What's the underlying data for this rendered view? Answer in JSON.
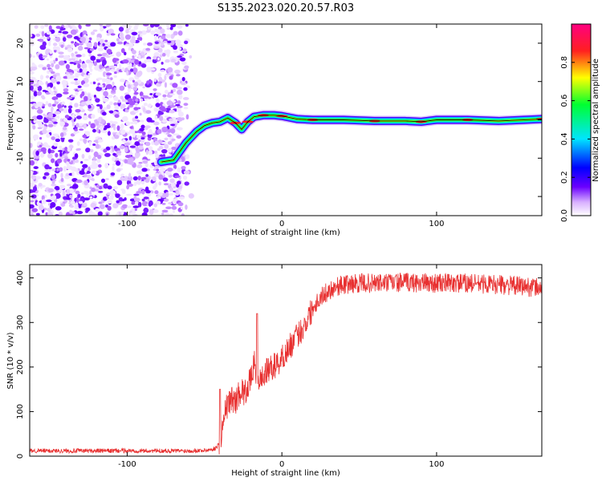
{
  "chart_data": [
    {
      "type": "heatmap",
      "title": "S135.2023.020.20.57.R03",
      "xlabel": "Height of straight line (km)",
      "ylabel": "Frequency (Hz)",
      "xlim": [
        -163,
        168
      ],
      "ylim": [
        -25,
        25
      ],
      "x_ticks": [
        -100,
        0,
        100
      ],
      "y_ticks": [
        -20,
        -10,
        0,
        10,
        20
      ],
      "colorbar": {
        "label": "Normalized spectral amplitude",
        "range": [
          0,
          1
        ],
        "ticks": [
          0.0,
          0.2,
          0.4,
          0.6,
          0.8
        ],
        "colors": [
          "#ffffff",
          "#6a00ff",
          "#0000ff",
          "#00e5ff",
          "#00ff30",
          "#ffff00",
          "#ff2020",
          "#ff0080"
        ]
      },
      "noise_region": {
        "x": [
          -163,
          -58
        ],
        "y": [
          -25,
          25
        ]
      },
      "ridge": {
        "x": [
          -78,
          -70,
          -62,
          -55,
          -50,
          -45,
          -40,
          -35,
          -30,
          -26,
          -22,
          -18,
          -12,
          -5,
          0,
          10,
          20,
          40,
          60,
          80,
          90,
          100,
          120,
          140,
          168
        ],
        "y": [
          -11,
          -10.5,
          -6,
          -3,
          -1.5,
          -0.8,
          -0.5,
          0.5,
          -0.8,
          -2.5,
          -0.5,
          0.8,
          1.2,
          1.2,
          1,
          0.2,
          0,
          0,
          -0.3,
          -0.3,
          -0.5,
          0,
          0,
          -0.3,
          0.2
        ]
      }
    },
    {
      "type": "line",
      "xlabel": "Height of straight line (km)",
      "ylabel": "SNR (10 * v/v)",
      "xlim": [
        -163,
        168
      ],
      "ylim": [
        0,
        430
      ],
      "x_ticks": [
        -100,
        0,
        100
      ],
      "y_ticks": [
        0,
        100,
        200,
        300,
        400
      ],
      "color": "#e83030",
      "series": [
        {
          "x": [
            -163,
            -140,
            -120,
            -100,
            -80,
            -60,
            -50,
            -45,
            -42,
            -40,
            -38,
            -36,
            -34,
            -32,
            -30,
            -28,
            -26,
            -24,
            -22,
            -20,
            -18,
            -16,
            -14,
            -10,
            -6,
            -2,
            2,
            6,
            10,
            14,
            18,
            22,
            26,
            30,
            34,
            40,
            50,
            60,
            80,
            100,
            120,
            140,
            160,
            168
          ],
          "values": [
            12,
            12,
            12,
            12,
            12,
            12,
            13,
            15,
            20,
            35,
            70,
            110,
            120,
            130,
            120,
            140,
            150,
            140,
            160,
            170,
            210,
            180,
            170,
            190,
            200,
            210,
            230,
            250,
            270,
            290,
            320,
            345,
            360,
            370,
            380,
            385,
            388,
            388,
            390,
            388,
            388,
            385,
            380,
            378
          ]
        }
      ],
      "spikes": [
        {
          "x": -40,
          "value": 150
        },
        {
          "x": -16,
          "value": 320
        }
      ]
    }
  ]
}
